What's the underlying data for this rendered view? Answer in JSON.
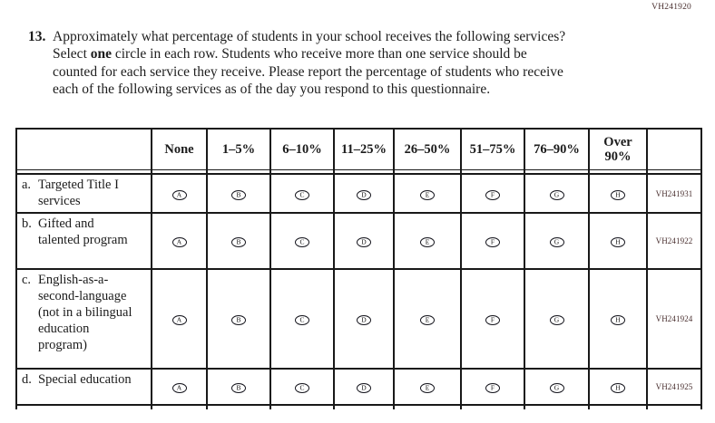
{
  "page": {
    "top_code": "VH241920"
  },
  "question": {
    "number": "13.",
    "text_before_bold": "Approximately what percentage of students in your school receives the following services? Select ",
    "bold_word": "one",
    "text_after_bold": " circle in each row. Students who receive more than one service should be counted for each service they receive. Please report the percentage of students who receive each of the following services as of the day you respond to this questionnaire."
  },
  "table": {
    "column_headers": [
      "None",
      "1–5%",
      "6–10%",
      "11–25%",
      "26–50%",
      "51–75%",
      "76–90%",
      "Over 90%"
    ],
    "option_letters": [
      "A",
      "B",
      "C",
      "D",
      "E",
      "F",
      "G",
      "H"
    ],
    "rows": [
      {
        "letter": "a.",
        "label": "Targeted Title I services",
        "code": "VH241931"
      },
      {
        "letter": "b.",
        "label": "Gifted and talented program",
        "code": "VH241922"
      },
      {
        "letter": "c.",
        "label": "English-as-a-second-language (not in a bilingual education program)",
        "code": "VH241924"
      },
      {
        "letter": "d.",
        "label": "Special education",
        "code": "VH241925"
      }
    ],
    "colors": {
      "admin_code_text": "#4a3030",
      "table_border": "#191919"
    }
  }
}
